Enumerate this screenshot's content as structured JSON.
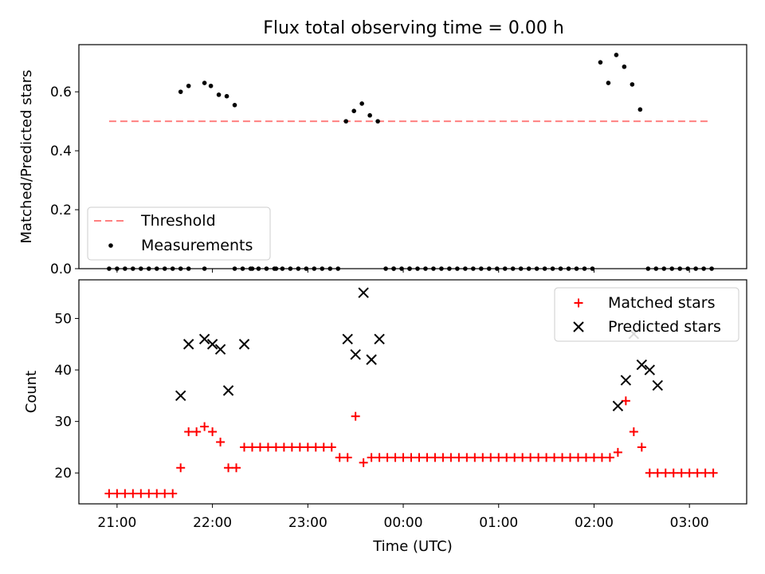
{
  "title": "Flux total observing time = 0.00 h",
  "colors": {
    "threshold": "#ff8080",
    "measurement": "#000000",
    "matched": "#ff0000",
    "predicted": "#000000"
  },
  "chart_data": [
    {
      "type": "scatter",
      "ylabel": "Matched/Predicted stars",
      "xlabel": "",
      "ylim": [
        0,
        0.76
      ],
      "yticks": [
        "0.0",
        "0.2",
        "0.4",
        "0.6"
      ],
      "legend": {
        "position": "lower-left",
        "entries": [
          "Threshold",
          "Measurements"
        ]
      },
      "threshold": {
        "name": "Threshold",
        "y": 0.5,
        "x_range": [
          "20:55",
          "03:13"
        ]
      },
      "series": [
        {
          "name": "Measurements",
          "x": [
            "20:55",
            "21:00",
            "21:05",
            "21:10",
            "21:15",
            "21:20",
            "21:25",
            "21:30",
            "21:35",
            "21:40",
            "21:45",
            "21:55",
            "21:59",
            "22:04",
            "22:09",
            "22:14",
            "22:19",
            "22:24",
            "22:29",
            "22:34",
            "22:39",
            "22:44",
            "22:49",
            "22:54",
            "22:59",
            "23:04",
            "23:09",
            "23:14",
            "23:19",
            "23:24",
            "23:29",
            "23:34",
            "23:39",
            "23:44",
            "23:49",
            "23:54",
            "23:59",
            "00:04",
            "00:09",
            "00:14",
            "00:19",
            "00:24",
            "00:29",
            "00:34",
            "00:39",
            "00:44",
            "00:49",
            "00:54",
            "00:59",
            "01:04",
            "01:09",
            "01:14",
            "01:19",
            "01:24",
            "01:29",
            "01:34",
            "01:39",
            "01:44",
            "01:49",
            "01:54",
            "01:59",
            "02:04",
            "02:09",
            "02:14",
            "02:19",
            "02:24",
            "02:29",
            "02:34",
            "02:39",
            "02:44",
            "02:49",
            "02:54",
            "02:59",
            "03:04",
            "03:09",
            "03:14",
            "21:45",
            "21:55",
            "22:14",
            "22:25",
            "21:40",
            "22:40",
            "23:54",
            "00:04"
          ],
          "y": [
            0,
            0,
            0,
            0,
            0,
            0,
            0,
            0,
            0,
            0.6,
            0.62,
            0.63,
            0.62,
            0.59,
            0.585,
            0.555,
            0,
            0,
            0,
            0,
            0,
            0,
            0,
            0,
            0,
            0,
            0,
            0,
            0,
            0.5,
            0.535,
            0.56,
            0.52,
            0.5,
            0,
            0,
            0,
            0,
            0,
            0,
            0,
            0,
            0,
            0,
            0,
            0,
            0,
            0,
            0,
            0,
            0,
            0,
            0,
            0,
            0,
            0,
            0,
            0,
            0,
            0,
            0,
            0.7,
            0.63,
            0.725,
            0.685,
            0.625,
            0.54,
            0,
            0,
            0,
            0,
            0,
            0,
            0,
            0,
            0,
            0,
            0,
            0,
            0,
            0,
            0,
            0,
            0
          ]
        }
      ]
    },
    {
      "type": "scatter",
      "ylabel": "Count",
      "xlabel": "Time (UTC)",
      "ylim": [
        14,
        57.5
      ],
      "yticks": [
        "20",
        "30",
        "40",
        "50"
      ],
      "xticks": [
        "21:00",
        "22:00",
        "23:00",
        "00:00",
        "01:00",
        "02:00",
        "03:00"
      ],
      "legend": {
        "position": "top-right",
        "entries": [
          "Matched stars",
          "Predicted stars"
        ]
      },
      "series": [
        {
          "name": "Matched stars",
          "x": [
            "20:55",
            "21:00",
            "21:05",
            "21:10",
            "21:15",
            "21:20",
            "21:25",
            "21:30",
            "21:35",
            "21:40",
            "21:45",
            "21:50",
            "21:55",
            "22:00",
            "22:05",
            "22:10",
            "22:15",
            "22:20",
            "22:25",
            "22:30",
            "22:35",
            "22:40",
            "22:45",
            "22:50",
            "22:55",
            "23:00",
            "23:05",
            "23:10",
            "23:15",
            "23:20",
            "23:25",
            "23:30",
            "23:35",
            "23:40",
            "23:45",
            "23:50",
            "23:55",
            "00:00",
            "00:05",
            "00:10",
            "00:15",
            "00:20",
            "00:25",
            "00:30",
            "00:35",
            "00:40",
            "00:45",
            "00:50",
            "00:55",
            "01:00",
            "01:05",
            "01:10",
            "01:15",
            "01:20",
            "01:25",
            "01:30",
            "01:35",
            "01:40",
            "01:45",
            "01:50",
            "01:55",
            "02:00",
            "02:05",
            "02:10",
            "02:15",
            "02:20",
            "02:25",
            "02:30",
            "02:35",
            "02:40",
            "02:45",
            "02:50",
            "02:55",
            "03:00",
            "03:05",
            "03:10",
            "03:15"
          ],
          "y": [
            16,
            16,
            16,
            16,
            16,
            16,
            16,
            16,
            16,
            21,
            28,
            28,
            29,
            28,
            26,
            21,
            21,
            25,
            25,
            25,
            25,
            25,
            25,
            25,
            25,
            25,
            25,
            25,
            25,
            23,
            23,
            31,
            22,
            23,
            23,
            23,
            23,
            23,
            23,
            23,
            23,
            23,
            23,
            23,
            23,
            23,
            23,
            23,
            23,
            23,
            23,
            23,
            23,
            23,
            23,
            23,
            23,
            23,
            23,
            23,
            23,
            23,
            23,
            23,
            24,
            34,
            28,
            25,
            20,
            20,
            20,
            20,
            20,
            20,
            20,
            20,
            20
          ]
        },
        {
          "name": "Predicted stars",
          "x": [
            "21:40",
            "21:45",
            "21:55",
            "22:00",
            "22:05",
            "22:10",
            "22:20",
            "23:25",
            "23:30",
            "23:35",
            "23:40",
            "23:45",
            "02:15",
            "02:20",
            "02:25",
            "02:30",
            "02:35",
            "02:40"
          ],
          "y": [
            35,
            45,
            46,
            45,
            44,
            36,
            45,
            46,
            43,
            55,
            42,
            46,
            33,
            38,
            47,
            41,
            40,
            37
          ]
        }
      ]
    }
  ]
}
